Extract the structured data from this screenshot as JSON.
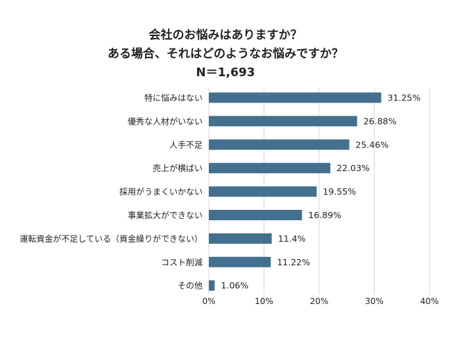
{
  "chart_data": {
    "type": "bar",
    "orientation": "horizontal",
    "title_lines": [
      "会社のお悩みはありますか？",
      "ある場合、それはどのようなお悩みですか？",
      "N＝1,693"
    ],
    "categories": [
      "特に悩みはない",
      "優秀な人材がいない",
      "人手不足",
      "売上が横ばい",
      "採用がうまくいかない",
      "事業拡大ができない",
      "運転資金が不足している（資金繰りができない）",
      "コスト削減",
      "その他"
    ],
    "values": [
      31.25,
      26.88,
      25.46,
      22.03,
      19.55,
      16.89,
      11.4,
      11.22,
      1.06
    ],
    "value_labels": [
      "31.25%",
      "26.88%",
      "25.46%",
      "22.03%",
      "19.55%",
      "16.89%",
      "11.4%",
      "11.22%",
      "1.06%"
    ],
    "xlim": [
      0,
      40
    ],
    "x_ticks": [
      0,
      10,
      20,
      30,
      40
    ],
    "x_tick_labels": [
      "0%",
      "10%",
      "20%",
      "30%",
      "40%"
    ],
    "grid": true,
    "legend": "none",
    "bar_color": "#44708F",
    "grid_color": "#D9D9D9"
  }
}
